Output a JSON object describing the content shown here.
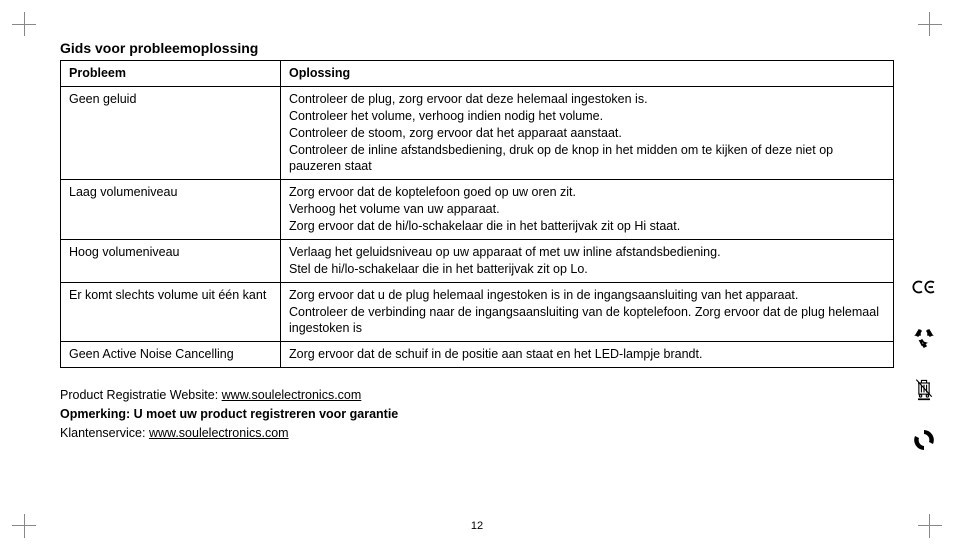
{
  "title": "Gids voor probleemoplossing",
  "table": {
    "headers": {
      "problem": "Probleem",
      "solution": "Oplossing"
    },
    "rows": [
      {
        "problem": "Geen geluid",
        "solution": "Controleer de plug, zorg ervoor dat deze helemaal ingestoken is.\nControleer het volume, verhoog indien nodig het volume.\nControleer de stoom, zorg ervoor dat het apparaat aanstaat.\nControleer de inline afstandsbediening, druk op de knop in het midden om te kijken of deze niet op pauzeren staat"
      },
      {
        "problem": "Laag volumeniveau",
        "solution": "Zorg ervoor dat de koptelefoon goed op uw oren zit.\nVerhoog het volume van uw apparaat.\nZorg ervoor dat de hi/lo-schakelaar die in het batterijvak zit op Hi staat."
      },
      {
        "problem": "Hoog volumeniveau",
        "solution": "Verlaag het geluidsniveau op uw apparaat of met uw inline afstandsbediening.\nStel de hi/lo-schakelaar die in het batterijvak zit op Lo."
      },
      {
        "problem": "Er komt slechts volume uit één kant",
        "solution": "Zorg ervoor dat u de plug helemaal ingestoken is in de ingangsaansluiting van het apparaat.\nControleer de verbinding naar de ingangsaansluiting van de koptelefoon. Zorg ervoor dat de plug helemaal ingestoken is"
      },
      {
        "problem": "Geen Active Noise Cancelling",
        "solution": "Zorg ervoor dat de schuif in de positie aan staat en het LED-lampje brandt."
      }
    ]
  },
  "footer": {
    "reg_label": "Product Registratie Website: ",
    "reg_url": "www.soulelectronics.com",
    "warranty_note": "Opmerking: U moet uw product registreren voor garantie",
    "service_label": "Klantenservice: ",
    "service_url": "www.soulelectronics.com"
  },
  "page_number": "12",
  "icons": {
    "ce": "ce-mark-icon",
    "recycle": "recycle-icon",
    "weee": "weee-bin-icon",
    "green_dot": "green-dot-icon"
  }
}
